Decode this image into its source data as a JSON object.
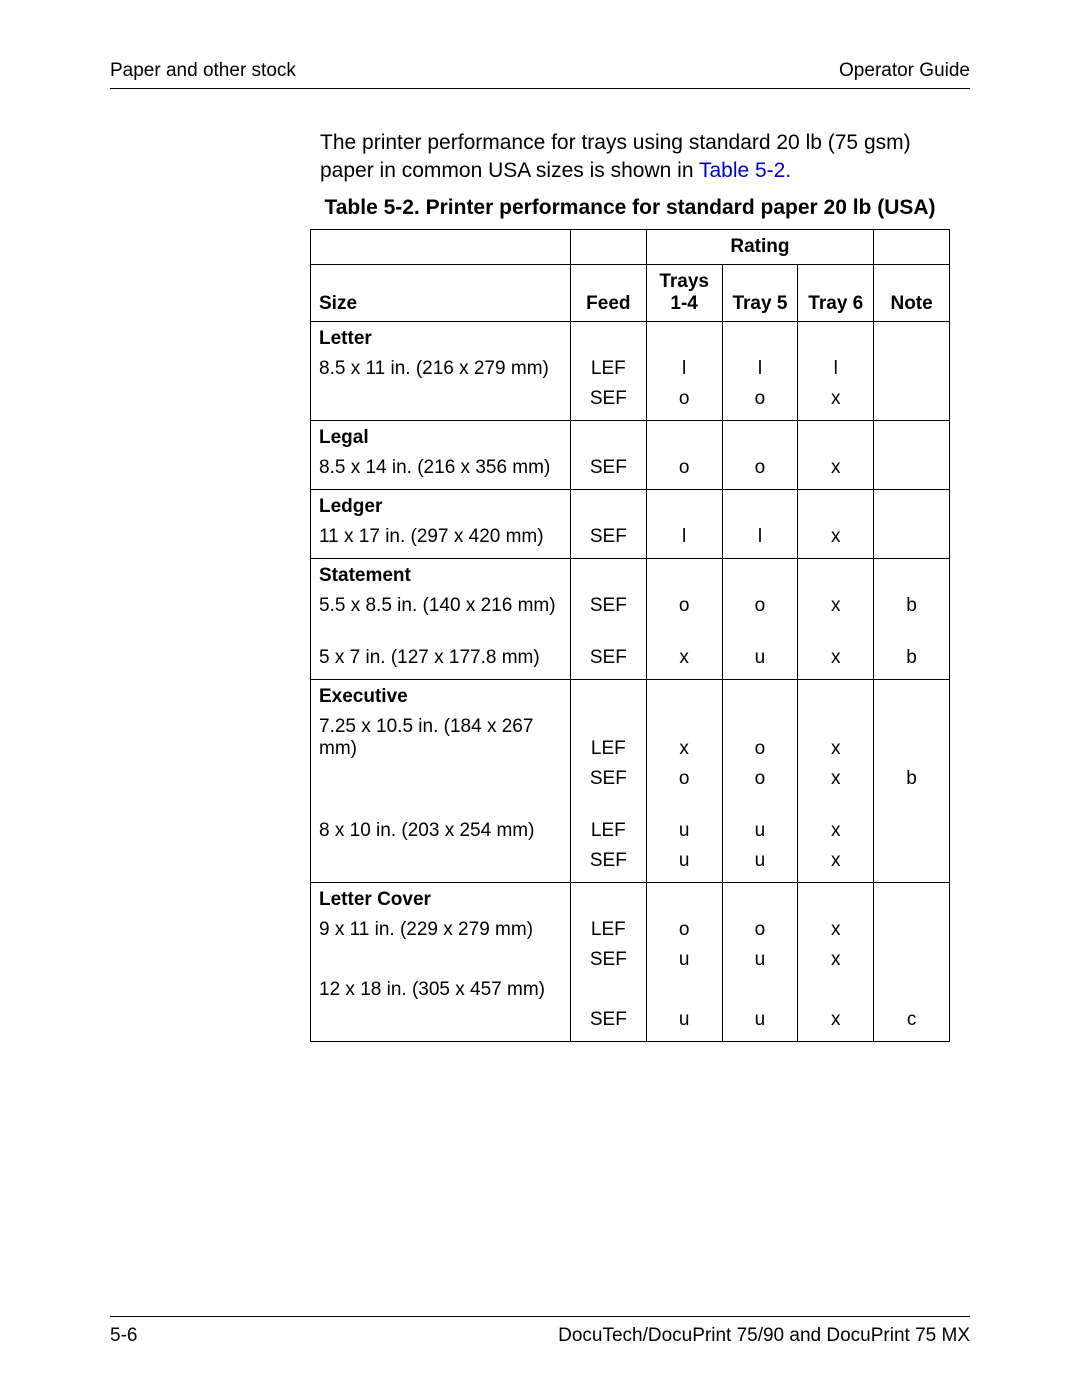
{
  "header": {
    "left": "Paper and other stock",
    "right": "Operator Guide"
  },
  "intro": {
    "text_before": "The printer performance for trays using standard 20 lb (75 gsm) paper in common USA sizes is shown in ",
    "link_text": "Table 5-2.",
    "link_color": "#0000cc"
  },
  "caption": "Table 5-2. Printer performance for standard paper 20 lb (USA)",
  "table": {
    "rating_header": "Rating",
    "columns": {
      "size": "Size",
      "feed": "Feed",
      "trays14": "Trays 1-4",
      "tray5": "Tray 5",
      "tray6": "Tray 6",
      "note": "Note"
    },
    "widths": {
      "size": 240,
      "feed": 70,
      "tray": 70,
      "note": 70
    },
    "groups": [
      {
        "name": "Letter",
        "rows": [
          {
            "size": "8.5 x 11 in. (216 x 279 mm)",
            "feed": "LEF",
            "t14": "l",
            "t5": "l",
            "t6": "l",
            "note": ""
          },
          {
            "size": "",
            "feed": "SEF",
            "t14": "o",
            "t5": "o",
            "t6": "x",
            "note": ""
          }
        ]
      },
      {
        "name": "Legal",
        "rows": [
          {
            "size": "8.5 x 14 in. (216 x 356 mm)",
            "feed": "SEF",
            "t14": "o",
            "t5": "o",
            "t6": "x",
            "note": ""
          }
        ]
      },
      {
        "name": "Ledger",
        "rows": [
          {
            "size": "11 x 17 in. (297 x 420 mm)",
            "feed": "SEF",
            "t14": "l",
            "t5": "l",
            "t6": "x",
            "note": ""
          }
        ]
      },
      {
        "name": "Statement",
        "rows": [
          {
            "size": "5.5 x 8.5 in. (140 x 216 mm)",
            "feed": "SEF",
            "t14": "o",
            "t5": "o",
            "t6": "x",
            "note": "b"
          },
          {
            "size": "5 x 7 in. (127 x 177.8 mm)",
            "feed": "SEF",
            "t14": "x",
            "t5": "u",
            "t6": "x",
            "note": "b",
            "gap": true
          }
        ]
      },
      {
        "name": "Executive",
        "rows": [
          {
            "size": "7.25 x 10.5 in. (184 x 267 mm)",
            "feed": "LEF",
            "t14": "x",
            "t5": "o",
            "t6": "x",
            "note": ""
          },
          {
            "size": "",
            "feed": "SEF",
            "t14": "o",
            "t5": "o",
            "t6": "x",
            "note": "b"
          },
          {
            "size": "8 x 10 in. (203 x 254 mm)",
            "feed": "LEF",
            "t14": "u",
            "t5": "u",
            "t6": "x",
            "note": "",
            "gap": true
          },
          {
            "size": "",
            "feed": "SEF",
            "t14": "u",
            "t5": "u",
            "t6": "x",
            "note": ""
          }
        ]
      },
      {
        "name": "Letter Cover",
        "rows": [
          {
            "size": "9 x 11 in. (229 x 279 mm)",
            "feed": "LEF",
            "t14": "o",
            "t5": "o",
            "t6": "x",
            "note": ""
          },
          {
            "size": "",
            "feed": "SEF",
            "t14": "u",
            "t5": "u",
            "t6": "x",
            "note": ""
          },
          {
            "size": "12 x 18 in. (305 x 457 mm)",
            "feed": "",
            "t14": "",
            "t5": "",
            "t6": "",
            "note": ""
          },
          {
            "size": "",
            "feed": "SEF",
            "t14": "u",
            "t5": "u",
            "t6": "x",
            "note": "c"
          }
        ]
      }
    ]
  },
  "footer": {
    "left": "5-6",
    "right": "DocuTech/DocuPrint 75/90 and DocuPrint 75 MX"
  },
  "colors": {
    "text": "#000000",
    "background": "#ffffff",
    "border": "#000000"
  }
}
